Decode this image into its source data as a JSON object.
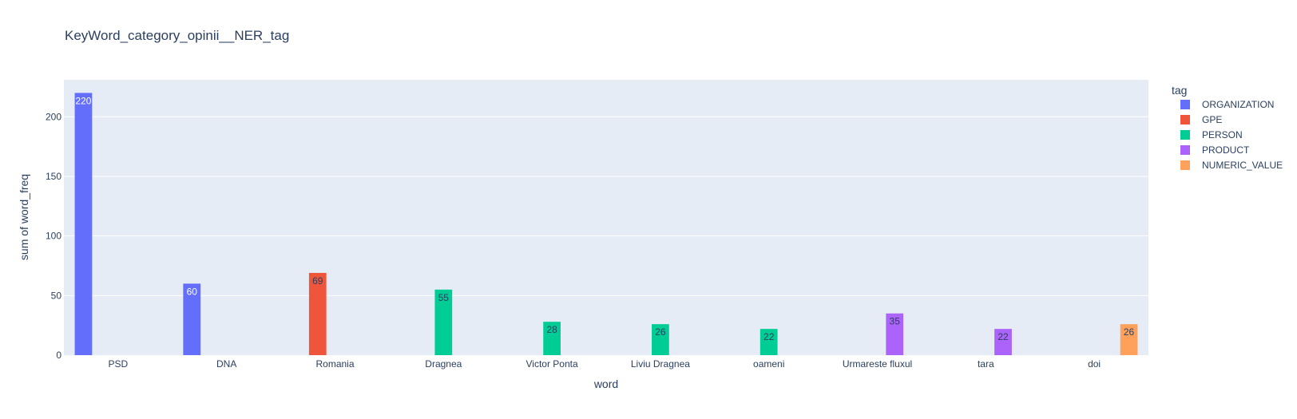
{
  "chart_data": {
    "type": "bar",
    "title": "KeyWord_category_opinii__NER_tag",
    "xlabel": "word",
    "ylabel": "sum of word_freq",
    "ylim": [
      0,
      231
    ],
    "yticks": [
      0,
      50,
      100,
      150,
      200
    ],
    "grid": true,
    "legend_title": "tag",
    "legend_position": "right",
    "categories": [
      "PSD",
      "DNA",
      "Romania",
      "Dragnea",
      "Victor Ponta",
      "Liviu Dragnea",
      "oameni",
      "Urmareste fluxul",
      "tara",
      "doi"
    ],
    "series": [
      {
        "name": "ORGANIZATION",
        "color": "#636efa",
        "values": [
          220,
          60,
          null,
          null,
          null,
          null,
          null,
          null,
          null,
          null
        ]
      },
      {
        "name": "GPE",
        "color": "#EF553B",
        "values": [
          null,
          null,
          69,
          null,
          null,
          null,
          null,
          null,
          null,
          null
        ]
      },
      {
        "name": "PERSON",
        "color": "#00cc96",
        "values": [
          null,
          null,
          null,
          55,
          28,
          26,
          22,
          null,
          null,
          null
        ]
      },
      {
        "name": "PRODUCT",
        "color": "#ab63fa",
        "values": [
          null,
          null,
          null,
          null,
          null,
          null,
          null,
          35,
          22,
          null
        ]
      },
      {
        "name": "NUMERIC_VALUE",
        "color": "#FFA15A",
        "values": [
          null,
          null,
          null,
          null,
          null,
          null,
          null,
          null,
          null,
          26
        ]
      }
    ]
  },
  "colors": {
    "plot_bg": "#e5ecf6",
    "grid": "#ffffff",
    "text": "#2a3f5f"
  }
}
